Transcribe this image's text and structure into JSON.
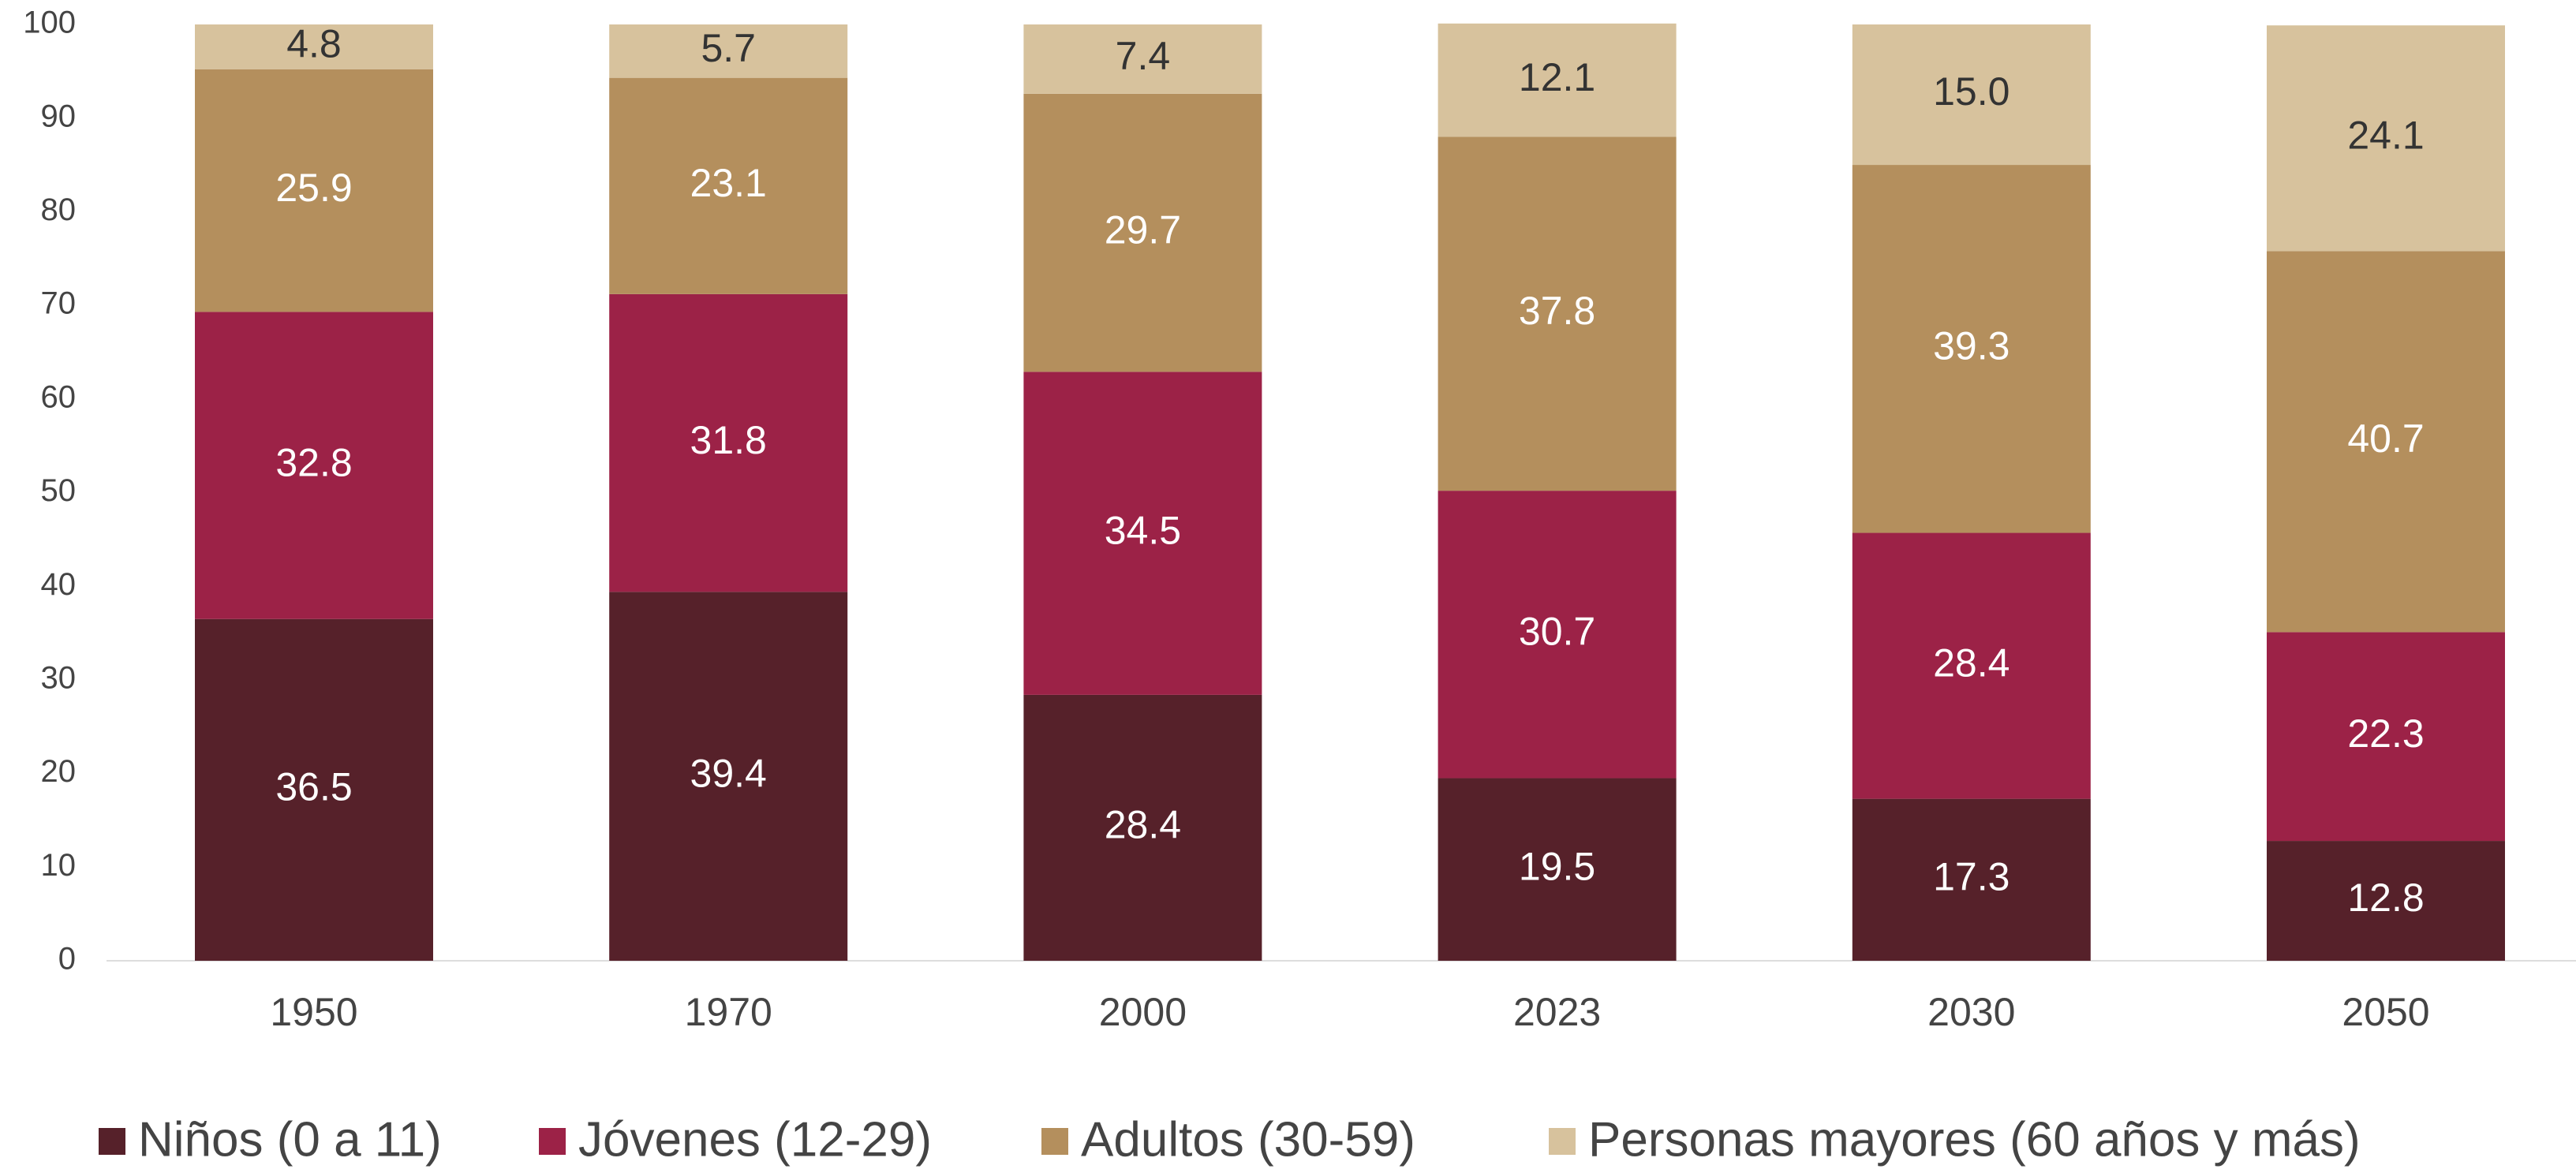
{
  "chart_data": {
    "type": "stacked_bar",
    "categories": [
      "1950",
      "1970",
      "2000",
      "2023",
      "2030",
      "2050"
    ],
    "series": [
      {
        "name": "Niños (0 a 11)",
        "color": "#56212a",
        "values": [
          36.5,
          39.4,
          28.4,
          19.5,
          17.3,
          12.8
        ]
      },
      {
        "name": "Jóvenes (12-29)",
        "color": "#9c2247",
        "values": [
          32.8,
          31.8,
          34.5,
          30.7,
          28.4,
          22.3
        ]
      },
      {
        "name": "Adultos (30-59)",
        "color": "#b48f5d",
        "values": [
          25.9,
          23.1,
          29.7,
          37.8,
          39.3,
          40.7
        ]
      },
      {
        "name": "Personas mayores (60 años y más)",
        "color": "#d7c29d",
        "values": [
          4.8,
          5.7,
          7.4,
          12.1,
          15.0,
          24.1
        ],
        "value_labels": [
          "4.8",
          "5.7",
          "7.4",
          "12.1",
          "15.0",
          "24.1"
        ]
      }
    ],
    "ylim": [
      0,
      100
    ],
    "yticks": [
      0,
      10,
      20,
      30,
      40,
      50,
      60,
      70,
      80,
      90,
      100
    ],
    "legend": "bottom"
  }
}
